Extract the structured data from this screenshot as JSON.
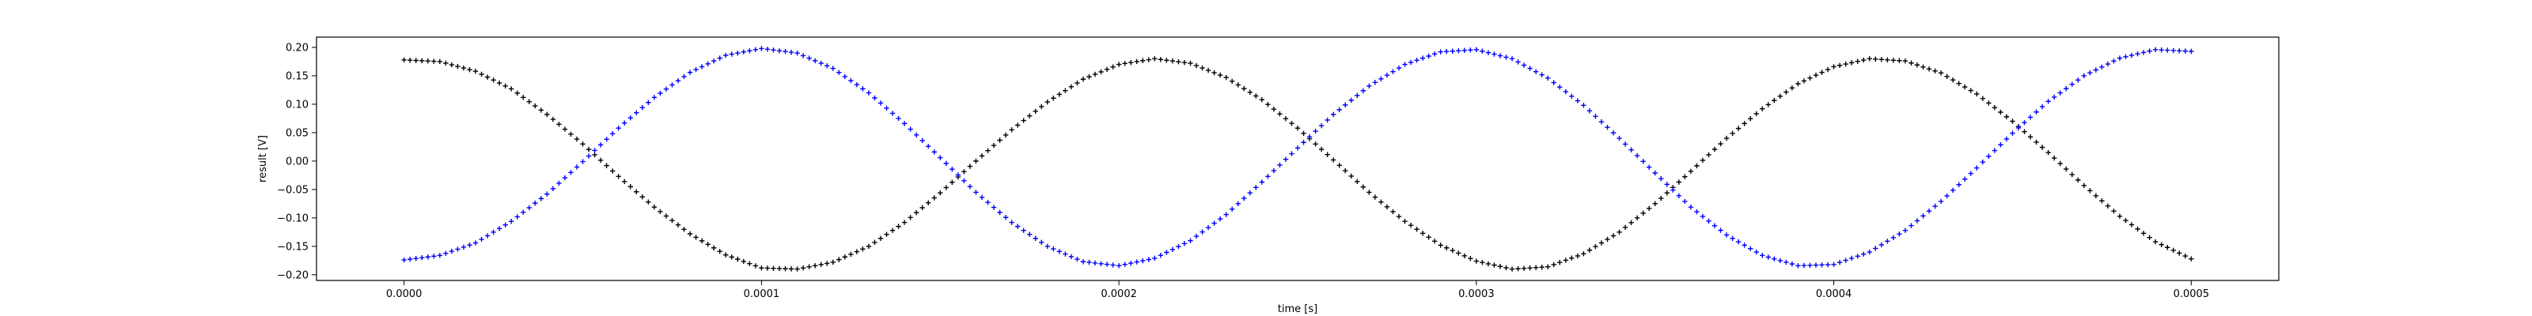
{
  "chart_data": {
    "type": "scatter",
    "xlabel": "time [s]",
    "ylabel": "result [V]",
    "xlim": [
      -2.45e-05,
      0.0005245
    ],
    "ylim": [
      -0.21,
      0.218
    ],
    "grid": false,
    "x_ticks": [
      {
        "value": 0.0,
        "label": "0.0000"
      },
      {
        "value": 0.0001,
        "label": "0.0001"
      },
      {
        "value": 0.0002,
        "label": "0.0002"
      },
      {
        "value": 0.0003,
        "label": "0.0003"
      },
      {
        "value": 0.0004,
        "label": "0.0004"
      },
      {
        "value": 0.0005,
        "label": "0.0005"
      }
    ],
    "y_ticks": [
      {
        "value": 0.2,
        "label": "0.20"
      },
      {
        "value": 0.15,
        "label": "0.15"
      },
      {
        "value": 0.1,
        "label": "0.10"
      },
      {
        "value": 0.05,
        "label": "0.05"
      },
      {
        "value": 0.0,
        "label": "0.00"
      },
      {
        "value": -0.05,
        "label": "−0.05"
      },
      {
        "value": -0.1,
        "label": "−0.10"
      },
      {
        "value": -0.15,
        "label": "−0.15"
      },
      {
        "value": -0.2,
        "label": "−0.20"
      }
    ],
    "series": [
      {
        "color": "#000000",
        "marker": "+",
        "points": [
          [
            0.0,
            0.178
          ],
          [
            1e-05,
            0.175
          ],
          [
            2e-05,
            0.158
          ],
          [
            3e-05,
            0.127
          ],
          [
            4e-05,
            0.082
          ],
          [
            5e-05,
            0.03
          ],
          [
            6e-05,
            -0.027
          ],
          [
            7e-05,
            -0.081
          ],
          [
            8e-05,
            -0.128
          ],
          [
            9e-05,
            -0.165
          ],
          [
            0.0001,
            -0.188
          ],
          [
            0.00011,
            -0.19
          ],
          [
            0.00012,
            -0.178
          ],
          [
            0.00013,
            -0.15
          ],
          [
            0.00014,
            -0.108
          ],
          [
            0.00015,
            -0.056
          ],
          [
            0.00016,
            0.0
          ],
          [
            0.00017,
            0.055
          ],
          [
            0.00018,
            0.104
          ],
          [
            0.00019,
            0.144
          ],
          [
            0.0002,
            0.17
          ],
          [
            0.00021,
            0.18
          ],
          [
            0.00022,
            0.172
          ],
          [
            0.00023,
            0.147
          ],
          [
            0.00024,
            0.108
          ],
          [
            0.00025,
            0.058
          ],
          [
            0.00026,
            0.002
          ],
          [
            0.00027,
            -0.055
          ],
          [
            0.00028,
            -0.106
          ],
          [
            0.00029,
            -0.148
          ],
          [
            0.0003,
            -0.176
          ],
          [
            0.00031,
            -0.19
          ],
          [
            0.00032,
            -0.186
          ],
          [
            0.00033,
            -0.163
          ],
          [
            0.00034,
            -0.125
          ],
          [
            0.00035,
            -0.075
          ],
          [
            0.00036,
            -0.018
          ],
          [
            0.00037,
            0.04
          ],
          [
            0.00038,
            0.092
          ],
          [
            0.00039,
            0.136
          ],
          [
            0.0004,
            0.166
          ],
          [
            0.00041,
            0.18
          ],
          [
            0.00042,
            0.176
          ],
          [
            0.00043,
            0.155
          ],
          [
            0.00044,
            0.118
          ],
          [
            0.00045,
            0.07
          ],
          [
            0.00046,
            0.015
          ],
          [
            0.00047,
            -0.043
          ],
          [
            0.00048,
            -0.097
          ],
          [
            0.00049,
            -0.142
          ],
          [
            0.0005,
            -0.172
          ]
        ]
      },
      {
        "color": "#0000ff",
        "marker": "+",
        "points": [
          [
            0.0,
            -0.174
          ],
          [
            1e-05,
            -0.166
          ],
          [
            2e-05,
            -0.144
          ],
          [
            3e-05,
            -0.106
          ],
          [
            4e-05,
            -0.058
          ],
          [
            5e-05,
            -0.001
          ],
          [
            6e-05,
            0.058
          ],
          [
            7e-05,
            0.112
          ],
          [
            8e-05,
            0.156
          ],
          [
            9e-05,
            0.186
          ],
          [
            0.0001,
            0.198
          ],
          [
            0.00011,
            0.19
          ],
          [
            0.00012,
            0.163
          ],
          [
            0.00013,
            0.12
          ],
          [
            0.00014,
            0.066
          ],
          [
            0.00015,
            0.006
          ],
          [
            0.00016,
            -0.055
          ],
          [
            0.00017,
            -0.108
          ],
          [
            0.00018,
            -0.15
          ],
          [
            0.00019,
            -0.177
          ],
          [
            0.0002,
            -0.184
          ],
          [
            0.00021,
            -0.171
          ],
          [
            0.00022,
            -0.14
          ],
          [
            0.00023,
            -0.094
          ],
          [
            0.00024,
            -0.037
          ],
          [
            0.00025,
            0.023
          ],
          [
            0.00026,
            0.082
          ],
          [
            0.00027,
            0.132
          ],
          [
            0.00028,
            0.17
          ],
          [
            0.00029,
            0.192
          ],
          [
            0.0003,
            0.196
          ],
          [
            0.00031,
            0.18
          ],
          [
            0.00032,
            0.146
          ],
          [
            0.00033,
            0.098
          ],
          [
            0.00034,
            0.04
          ],
          [
            0.00035,
            -0.021
          ],
          [
            0.00036,
            -0.081
          ],
          [
            0.00037,
            -0.13
          ],
          [
            0.00038,
            -0.166
          ],
          [
            0.00039,
            -0.184
          ],
          [
            0.0004,
            -0.182
          ],
          [
            0.00041,
            -0.16
          ],
          [
            0.00042,
            -0.122
          ],
          [
            0.00043,
            -0.071
          ],
          [
            0.00044,
            -0.012
          ],
          [
            0.00045,
            0.049
          ],
          [
            0.00046,
            0.105
          ],
          [
            0.00047,
            0.15
          ],
          [
            0.00048,
            0.181
          ],
          [
            0.00049,
            0.196
          ],
          [
            0.0005,
            0.193
          ]
        ]
      }
    ]
  }
}
